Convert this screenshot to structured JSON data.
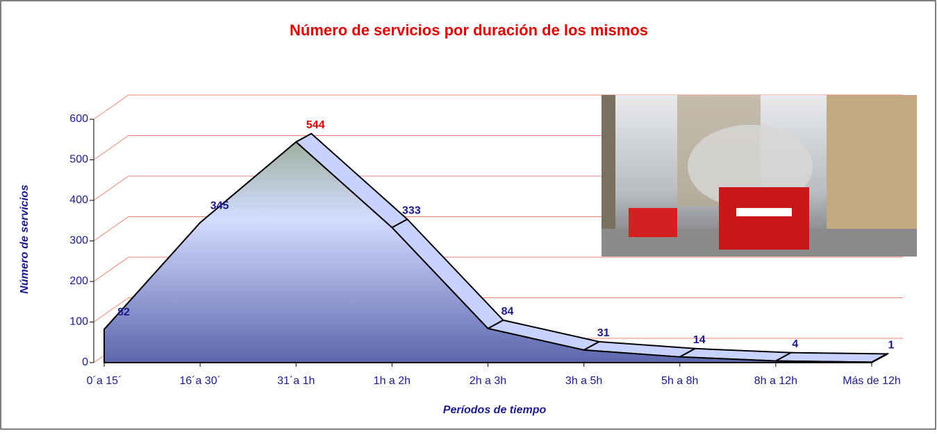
{
  "chart_data": {
    "type": "area3d",
    "title": "Número de servicios por duración de los mismos",
    "x_label": "Períodos de tiempo",
    "y_label": "Número de servicios",
    "categories": [
      "0´a 15´",
      "16´a 30´",
      "31´a 1h",
      "1h a 2h",
      "2h a 3h",
      "3h a 5h",
      "5h a 8h",
      "8h a 12h",
      "Más de 12h"
    ],
    "values": [
      82,
      345,
      544,
      333,
      84,
      31,
      14,
      4,
      1
    ],
    "color": "#c8d2ff",
    "value_label_color": "#1a1a8c",
    "max_label_color": "#e00000",
    "ylim": [
      0,
      600
    ],
    "yticks": [
      0,
      100,
      200,
      300,
      400,
      500,
      600
    ],
    "grid": true
  }
}
